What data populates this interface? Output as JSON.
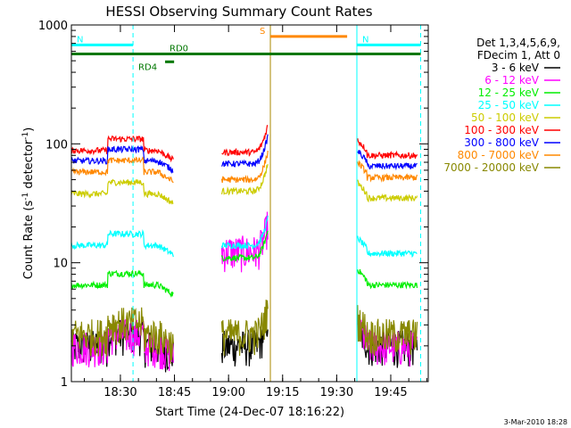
{
  "chart_data": {
    "type": "line",
    "title": "HESSI Observing Summary Count Rates",
    "xlabel": "Start Time (24-Dec-07 18:16:22)",
    "ylabel_main": "Count Rate (s",
    "ylabel_sup1": "-1",
    "ylabel_mid": " detector",
    "ylabel_sup2": "-1",
    "ylabel_end": ")",
    "y_scale": "log",
    "ylim": [
      1,
      1000
    ],
    "xlim_minutes": [
      0,
      99
    ],
    "x_ticks": [
      {
        "label": "18:30",
        "t": 13.6
      },
      {
        "label": "18:45",
        "t": 28.6
      },
      {
        "label": "19:00",
        "t": 43.6
      },
      {
        "label": "19:15",
        "t": 58.6
      },
      {
        "label": "19:30",
        "t": 73.6
      },
      {
        "label": "19:45",
        "t": 88.6
      }
    ],
    "y_ticks": [
      {
        "label": "1",
        "v": 1
      },
      {
        "label": "10",
        "v": 10
      },
      {
        "label": "100",
        "v": 100
      },
      {
        "label": "1000",
        "v": 1000
      }
    ],
    "legend_header": [
      "Det 1,3,4,5,6,9,",
      "FDecim 1, Att 0"
    ],
    "series": [
      {
        "name": "3 - 6 keV",
        "color": "#000000"
      },
      {
        "name": "6 - 12 keV",
        "color": "#ff00ff"
      },
      {
        "name": "12 - 25 keV",
        "color": "#00ee00"
      },
      {
        "name": "25 - 50 keV",
        "color": "#00ffff"
      },
      {
        "name": "50 - 100 keV",
        "color": "#cccc00"
      },
      {
        "name": "100 - 300 keV",
        "color": "#ff0000"
      },
      {
        "name": "300 - 800 keV",
        "color": "#0000ff"
      },
      {
        "name": "800 - 7000 keV",
        "color": "#ff8800"
      },
      {
        "name": "7000 - 20000 keV",
        "color": "#888800"
      }
    ],
    "segments": [
      {
        "start": 0,
        "end": 28.3,
        "levels": [
          2,
          2,
          6.5,
          14,
          38,
          88,
          72,
          58,
          2.5
        ]
      },
      {
        "start": 41.7,
        "end": 54.5,
        "levels": [
          2,
          12.5,
          11,
          14,
          40,
          85,
          68,
          50,
          2.5
        ]
      },
      {
        "start": 79.4,
        "end": 95.9,
        "levels": [
          2,
          2,
          6.5,
          12,
          35,
          80,
          65,
          52,
          2.5
        ]
      }
    ],
    "annotations": [
      {
        "label": "N",
        "color": "#00ffff",
        "t_start": 0,
        "t_end": 17.1,
        "level": 680
      },
      {
        "label": "N",
        "color": "#00ffff",
        "t_start": 79.2,
        "t_end": 96.9,
        "level": 680
      },
      {
        "label": "RD0",
        "color": "#007700",
        "t_start": 0,
        "t_end": 96.9,
        "level": 570
      },
      {
        "label": "RD4",
        "color": "#007700",
        "t_start": 26.0,
        "t_end": 28.5,
        "level": 490
      },
      {
        "label": "S",
        "color": "#ff8800",
        "t_start": 55.2,
        "t_end": 76.5,
        "level": 800
      }
    ],
    "vlines": [
      {
        "t": 17.1,
        "color": "#00ffff",
        "style": "dashed"
      },
      {
        "t": 96.9,
        "color": "#00ffff",
        "style": "dashed"
      },
      {
        "t": 79.2,
        "color": "#00ffff",
        "style": "solid"
      },
      {
        "t": 55.2,
        "color": "#aa8800",
        "style": "solid"
      }
    ],
    "footer_date": "3-Mar-2010 18:28"
  }
}
